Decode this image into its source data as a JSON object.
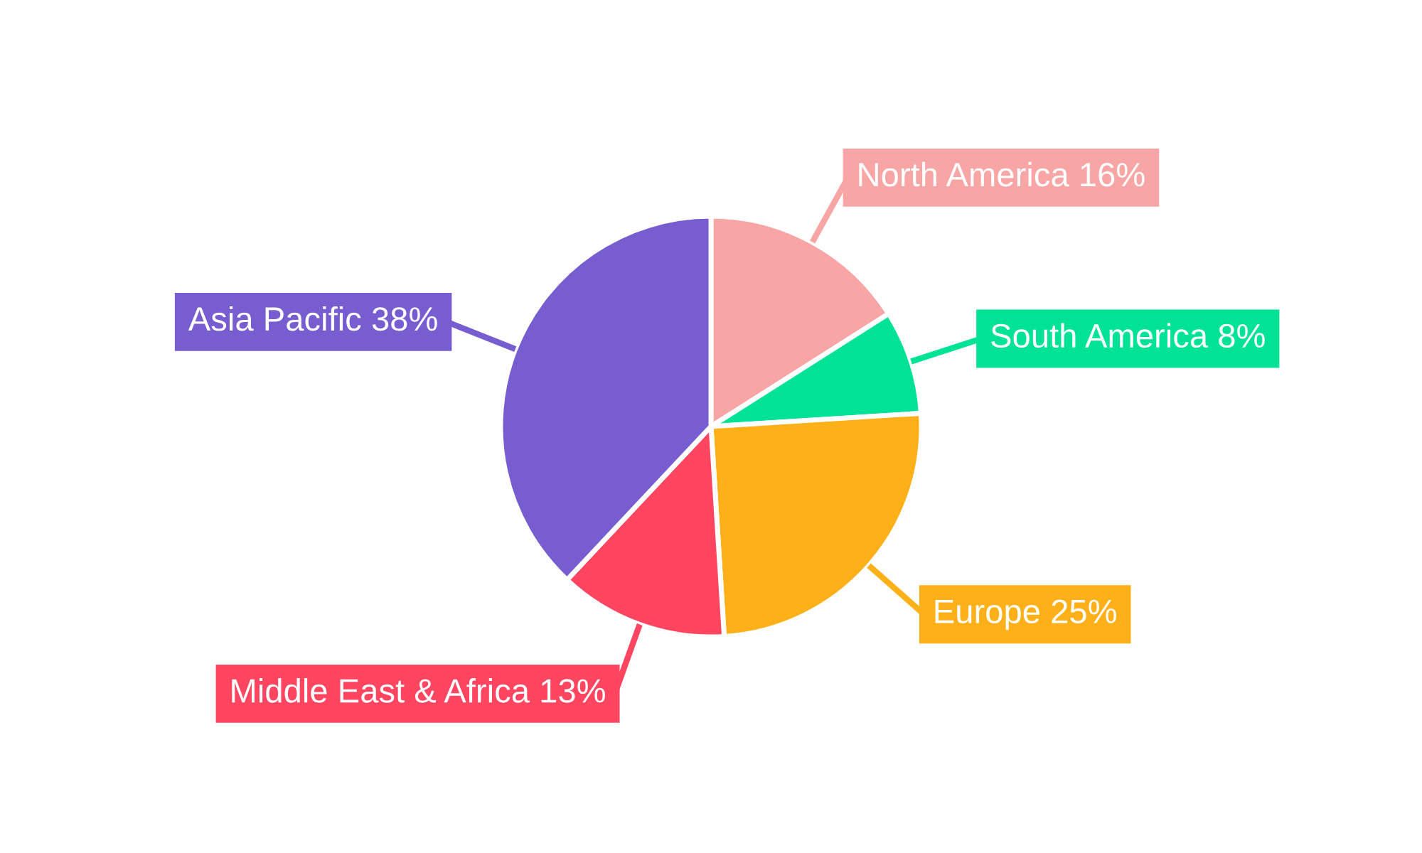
{
  "chart_data": {
    "type": "pie",
    "categories": [
      "North America",
      "South America",
      "Europe",
      "Middle East & Africa",
      "Asia Pacific"
    ],
    "values": [
      16,
      8,
      25,
      13,
      38
    ],
    "value_labels": [
      "16%",
      "8%",
      "25%",
      "13%",
      "38%"
    ],
    "colors": [
      "#f8a5a5",
      "#00e396",
      "#feb019",
      "#ff4560",
      "#775dd0"
    ]
  }
}
